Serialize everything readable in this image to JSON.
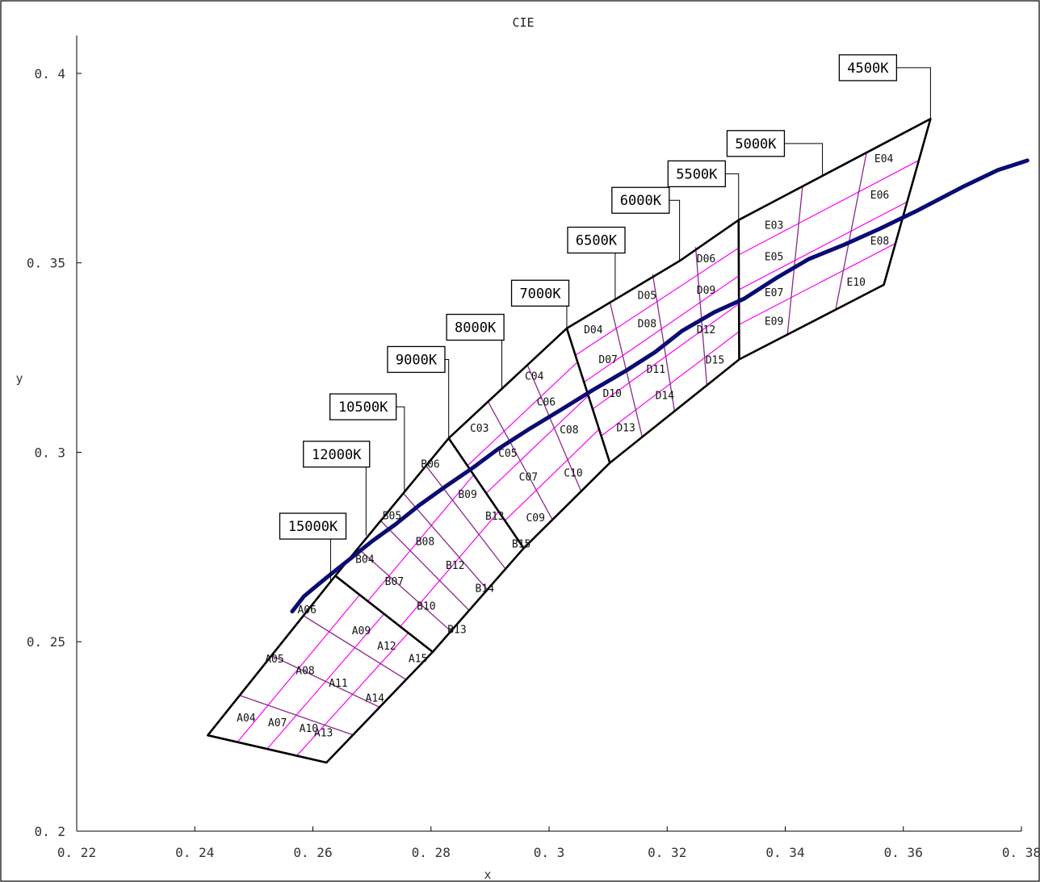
{
  "chart_data": {
    "type": "scatter",
    "title": "CIE",
    "xlabel": "x",
    "ylabel": "y",
    "xlim": [
      0.22,
      0.38
    ],
    "ylim": [
      0.2,
      0.41
    ],
    "x_ticks": [
      {
        "value": 0.22,
        "label": "0. 22"
      },
      {
        "value": 0.24,
        "label": "0. 24"
      },
      {
        "value": 0.26,
        "label": "0. 26"
      },
      {
        "value": 0.28,
        "label": "0. 28"
      },
      {
        "value": 0.3,
        "label": "0. 3"
      },
      {
        "value": 0.32,
        "label": "0. 32"
      },
      {
        "value": 0.34,
        "label": "0. 34"
      },
      {
        "value": 0.36,
        "label": "0. 36"
      },
      {
        "value": 0.38,
        "label": "0. 38"
      }
    ],
    "y_ticks": [
      {
        "value": 0.2,
        "label": "0. 2"
      },
      {
        "value": 0.25,
        "label": "0. 25"
      },
      {
        "value": 0.3,
        "label": "0. 3"
      },
      {
        "value": 0.35,
        "label": "0. 35"
      },
      {
        "value": 0.4,
        "label": "0. 4"
      }
    ],
    "grid": false,
    "blackbody_locus": [
      [
        0.2565,
        0.258
      ],
      [
        0.2585,
        0.262
      ],
      [
        0.2622,
        0.2668
      ],
      [
        0.266,
        0.2715
      ],
      [
        0.27,
        0.2765
      ],
      [
        0.274,
        0.281
      ],
      [
        0.278,
        0.286
      ],
      [
        0.2825,
        0.291
      ],
      [
        0.287,
        0.2958
      ],
      [
        0.2915,
        0.301
      ],
      [
        0.2965,
        0.306
      ],
      [
        0.302,
        0.3112
      ],
      [
        0.3075,
        0.3165
      ],
      [
        0.313,
        0.3215
      ],
      [
        0.318,
        0.3265
      ],
      [
        0.3225,
        0.332
      ],
      [
        0.328,
        0.337
      ],
      [
        0.333,
        0.3405
      ],
      [
        0.3385,
        0.346
      ],
      [
        0.344,
        0.351
      ],
      [
        0.35,
        0.3548
      ],
      [
        0.356,
        0.359
      ],
      [
        0.362,
        0.3635
      ],
      [
        0.37,
        0.37
      ],
      [
        0.376,
        0.3745
      ],
      [
        0.381,
        0.377
      ]
    ],
    "bin_outline": [
      [
        0.2422,
        0.2253
      ],
      [
        0.2638,
        0.2674
      ],
      [
        0.283,
        0.3037
      ],
      [
        0.303,
        0.3327
      ],
      [
        0.3221,
        0.3505
      ],
      [
        0.3321,
        0.3613
      ],
      [
        0.3646,
        0.388
      ],
      [
        0.3567,
        0.3442
      ],
      [
        0.3322,
        0.3245
      ],
      [
        0.3103,
        0.2972
      ],
      [
        0.2957,
        0.2747
      ],
      [
        0.2803,
        0.2473
      ],
      [
        0.2623,
        0.2181
      ],
      [
        0.2422,
        0.2253
      ]
    ],
    "cct_boundaries": [
      {
        "label": "15000K",
        "points": [
          [
            0.2638,
            0.2674
          ],
          [
            0.2803,
            0.2473
          ]
        ],
        "leader_anchor": [
          0.263,
          0.266
        ]
      },
      {
        "label": "12000K",
        "points": [
          [
            0.269,
            0.278
          ]
        ],
        "leader_anchor": [
          0.269,
          0.278
        ]
      },
      {
        "label": "10500K",
        "points": [
          [
            0.2755,
            0.2895
          ]
        ],
        "leader_anchor": [
          0.2755,
          0.2895
        ]
      },
      {
        "label": "9000K",
        "points": [
          [
            0.283,
            0.3037
          ],
          [
            0.2957,
            0.2747
          ]
        ],
        "leader_anchor": [
          0.283,
          0.3037
        ]
      },
      {
        "label": "8000K",
        "points": [
          [
            0.292,
            0.3165
          ]
        ],
        "leader_anchor": [
          0.292,
          0.3165
        ]
      },
      {
        "label": "7000K",
        "points": [
          [
            0.303,
            0.3327
          ],
          [
            0.3103,
            0.2972
          ]
        ],
        "leader_anchor": [
          0.303,
          0.3327
        ]
      },
      {
        "label": "6500K",
        "points": [
          [
            0.3112,
            0.3405
          ]
        ],
        "leader_anchor": [
          0.3112,
          0.3405
        ]
      },
      {
        "label": "6000K",
        "points": [
          [
            0.3221,
            0.3505
          ]
        ],
        "leader_anchor": [
          0.3221,
          0.3505
        ]
      },
      {
        "label": "5500K",
        "points": [
          [
            0.3321,
            0.3613
          ],
          [
            0.3322,
            0.3245
          ]
        ],
        "leader_anchor": [
          0.3321,
          0.3613
        ]
      },
      {
        "label": "5000K",
        "points": [
          [
            0.3463,
            0.373
          ]
        ],
        "leader_anchor": [
          0.3463,
          0.373
        ]
      },
      {
        "label": "4500K",
        "points": [
          [
            0.3646,
            0.388
          ]
        ],
        "leader_anchor": [
          0.3646,
          0.388
        ]
      }
    ],
    "bins": [
      {
        "label": "A04",
        "x": 0.2487,
        "y": 0.229
      },
      {
        "label": "A05",
        "x": 0.2535,
        "y": 0.2445
      },
      {
        "label": "A06",
        "x": 0.259,
        "y": 0.2575
      },
      {
        "label": "A07",
        "x": 0.254,
        "y": 0.2277
      },
      {
        "label": "A08",
        "x": 0.2587,
        "y": 0.2414
      },
      {
        "label": "A09",
        "x": 0.2682,
        "y": 0.252
      },
      {
        "label": "A10",
        "x": 0.2593,
        "y": 0.2262
      },
      {
        "label": "A11",
        "x": 0.2643,
        "y": 0.2381
      },
      {
        "label": "A12",
        "x": 0.2725,
        "y": 0.2479
      },
      {
        "label": "A13",
        "x": 0.2618,
        "y": 0.225
      },
      {
        "label": "A14",
        "x": 0.2705,
        "y": 0.2342
      },
      {
        "label": "A15",
        "x": 0.2778,
        "y": 0.2446
      },
      {
        "label": "B04",
        "x": 0.2688,
        "y": 0.2708
      },
      {
        "label": "B05",
        "x": 0.2734,
        "y": 0.2823
      },
      {
        "label": "B06",
        "x": 0.2799,
        "y": 0.296
      },
      {
        "label": "B07",
        "x": 0.2738,
        "y": 0.265
      },
      {
        "label": "B08",
        "x": 0.279,
        "y": 0.2755
      },
      {
        "label": "B09",
        "x": 0.2862,
        "y": 0.288
      },
      {
        "label": "B10",
        "x": 0.2792,
        "y": 0.2585
      },
      {
        "label": "B12",
        "x": 0.2841,
        "y": 0.2692
      },
      {
        "label": "B13",
        "x": 0.2908,
        "y": 0.2822
      },
      {
        "label": "B13",
        "x": 0.2844,
        "y": 0.2523
      },
      {
        "label": "B14",
        "x": 0.2891,
        "y": 0.2632
      },
      {
        "label": "B15",
        "x": 0.2953,
        "y": 0.2749
      },
      {
        "label": "C03",
        "x": 0.2882,
        "y": 0.3054
      },
      {
        "label": "C04",
        "x": 0.2975,
        "y": 0.3192
      },
      {
        "label": "C05",
        "x": 0.293,
        "y": 0.2988
      },
      {
        "label": "C06",
        "x": 0.2995,
        "y": 0.3124
      },
      {
        "label": "C07",
        "x": 0.2965,
        "y": 0.2925
      },
      {
        "label": "C08",
        "x": 0.3034,
        "y": 0.305
      },
      {
        "label": "C09",
        "x": 0.2977,
        "y": 0.2818
      },
      {
        "label": "C10",
        "x": 0.3041,
        "y": 0.2936
      },
      {
        "label": "D04",
        "x": 0.3075,
        "y": 0.3314
      },
      {
        "label": "D05",
        "x": 0.3166,
        "y": 0.3405
      },
      {
        "label": "D06",
        "x": 0.3266,
        "y": 0.3502
      },
      {
        "label": "D07",
        "x": 0.31,
        "y": 0.3235
      },
      {
        "label": "D08",
        "x": 0.3166,
        "y": 0.333
      },
      {
        "label": "D09",
        "x": 0.3266,
        "y": 0.3418
      },
      {
        "label": "D10",
        "x": 0.3107,
        "y": 0.3146
      },
      {
        "label": "D11",
        "x": 0.3181,
        "y": 0.321
      },
      {
        "label": "D12",
        "x": 0.3266,
        "y": 0.3314
      },
      {
        "label": "D13",
        "x": 0.313,
        "y": 0.3055
      },
      {
        "label": "D14",
        "x": 0.3196,
        "y": 0.3141
      },
      {
        "label": "D15",
        "x": 0.3281,
        "y": 0.3234
      },
      {
        "label": "E03",
        "x": 0.3381,
        "y": 0.359
      },
      {
        "label": "E04",
        "x": 0.3567,
        "y": 0.3766
      },
      {
        "label": "E05",
        "x": 0.3381,
        "y": 0.3507
      },
      {
        "label": "E06",
        "x": 0.356,
        "y": 0.367
      },
      {
        "label": "E07",
        "x": 0.3381,
        "y": 0.3412
      },
      {
        "label": "E08",
        "x": 0.356,
        "y": 0.3548
      },
      {
        "label": "E09",
        "x": 0.3381,
        "y": 0.3336
      },
      {
        "label": "E10",
        "x": 0.352,
        "y": 0.344
      }
    ],
    "cct_labels": [
      {
        "label": "15000K",
        "box_x": 0.26,
        "box_y": 0.2805,
        "anchor": [
          0.263,
          0.266
        ]
      },
      {
        "label": "12000K",
        "box_x": 0.264,
        "box_y": 0.2995,
        "anchor": [
          0.269,
          0.278
        ]
      },
      {
        "label": "10500K",
        "box_x": 0.2685,
        "box_y": 0.312,
        "anchor": [
          0.2755,
          0.2895
        ]
      },
      {
        "label": "9000K",
        "box_x": 0.2775,
        "box_y": 0.3245,
        "anchor": [
          0.283,
          0.3037
        ]
      },
      {
        "label": "8000K",
        "box_x": 0.2875,
        "box_y": 0.333,
        "anchor": [
          0.292,
          0.3165
        ]
      },
      {
        "label": "7000K",
        "box_x": 0.2985,
        "box_y": 0.342,
        "anchor": [
          0.303,
          0.3327
        ]
      },
      {
        "label": "6500K",
        "box_x": 0.308,
        "box_y": 0.356,
        "anchor": [
          0.3112,
          0.3405
        ]
      },
      {
        "label": "6000K",
        "box_x": 0.3155,
        "box_y": 0.3665,
        "anchor": [
          0.3221,
          0.3505
        ]
      },
      {
        "label": "5500K",
        "box_x": 0.325,
        "box_y": 0.3735,
        "anchor": [
          0.3321,
          0.3613
        ]
      },
      {
        "label": "5000K",
        "box_x": 0.335,
        "box_y": 0.3815,
        "anchor": [
          0.3463,
          0.373
        ]
      },
      {
        "label": "4500K",
        "box_x": 0.354,
        "box_y": 0.4015,
        "anchor": [
          0.3646,
          0.388
        ]
      }
    ]
  }
}
